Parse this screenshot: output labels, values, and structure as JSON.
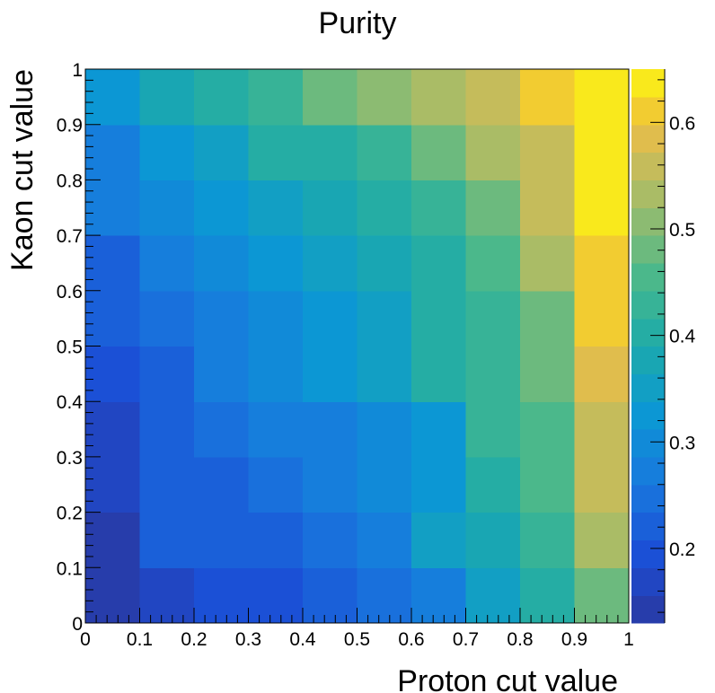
{
  "chart_data": {
    "type": "heatmap",
    "title": "Purity",
    "xlabel": "Proton cut value",
    "ylabel": "Kaon cut value",
    "x_bin_edges": [
      0,
      0.1,
      0.2,
      0.3,
      0.4,
      0.5,
      0.6,
      0.7,
      0.8,
      0.9,
      1.0
    ],
    "y_bin_edges": [
      0,
      0.1,
      0.2,
      0.3,
      0.4,
      0.5,
      0.6,
      0.7,
      0.8,
      0.9,
      1.0
    ],
    "xlim": [
      0,
      1
    ],
    "ylim": [
      0,
      1
    ],
    "x_ticks": [
      "0",
      "0.1",
      "0.2",
      "0.3",
      "0.4",
      "0.5",
      "0.6",
      "0.7",
      "0.8",
      "0.9",
      "1"
    ],
    "y_ticks": [
      "0",
      "0.1",
      "0.2",
      "0.3",
      "0.4",
      "0.5",
      "0.6",
      "0.7",
      "0.8",
      "0.9",
      "1"
    ],
    "colorbar": {
      "range": [
        0.13,
        0.65
      ],
      "ticks": [
        "0.2",
        "0.3",
        "0.4",
        "0.5",
        "0.6"
      ],
      "tick_values": [
        0.2,
        0.3,
        0.4,
        0.5,
        0.6
      ],
      "n_levels": 20
    },
    "values_by_row_bottom_to_top": [
      [
        0.14,
        0.17,
        0.2,
        0.2,
        0.22,
        0.25,
        0.27,
        0.34,
        0.4,
        0.48
      ],
      [
        0.14,
        0.21,
        0.22,
        0.22,
        0.24,
        0.28,
        0.35,
        0.37,
        0.43,
        0.53
      ],
      [
        0.18,
        0.21,
        0.22,
        0.25,
        0.27,
        0.29,
        0.33,
        0.4,
        0.45,
        0.57
      ],
      [
        0.18,
        0.23,
        0.25,
        0.27,
        0.28,
        0.31,
        0.33,
        0.42,
        0.46,
        0.57
      ],
      [
        0.2,
        0.22,
        0.28,
        0.3,
        0.32,
        0.35,
        0.39,
        0.44,
        0.47,
        0.58
      ],
      [
        0.23,
        0.24,
        0.28,
        0.3,
        0.33,
        0.36,
        0.4,
        0.44,
        0.49,
        0.6
      ],
      [
        0.23,
        0.27,
        0.3,
        0.32,
        0.34,
        0.38,
        0.41,
        0.46,
        0.53,
        0.6
      ],
      [
        0.26,
        0.3,
        0.33,
        0.35,
        0.38,
        0.4,
        0.44,
        0.49,
        0.55,
        0.64
      ],
      [
        0.26,
        0.32,
        0.35,
        0.39,
        0.41,
        0.44,
        0.49,
        0.53,
        0.57,
        0.64
      ],
      [
        0.33,
        0.37,
        0.41,
        0.44,
        0.48,
        0.5,
        0.53,
        0.56,
        0.6,
        0.65
      ]
    ],
    "grid": false,
    "legend": "colorbar-right"
  }
}
